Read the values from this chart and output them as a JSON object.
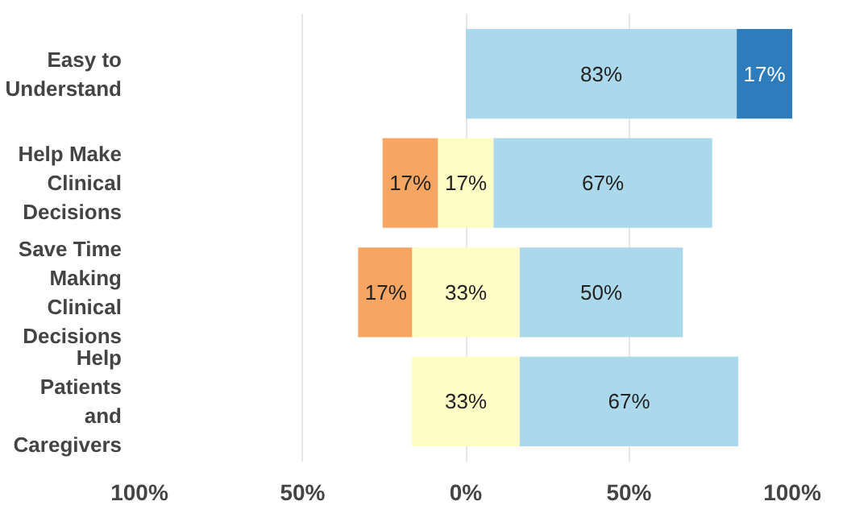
{
  "chart_data": {
    "type": "bar",
    "orientation": "horizontal",
    "categories": [
      "Easy to\nUnderstand",
      "Help Make\nClinical\nDecisions",
      "Save Time\nMaking\nClinical\nDecisions",
      "Help\nPatients\nand\nCaregivers"
    ],
    "series": [
      {
        "color": "#f7a562",
        "base": [
          null,
          -25.5,
          -33,
          null
        ],
        "values": [
          null,
          17,
          17,
          null
        ],
        "value_labels": [
          null,
          "17%",
          "17%",
          null
        ]
      },
      {
        "color": "#fffcc6",
        "base": [
          null,
          -8.5,
          -16.5,
          -16.5
        ],
        "values": [
          null,
          17,
          33,
          33
        ],
        "value_labels": [
          null,
          "17%",
          "33%",
          "33%"
        ]
      },
      {
        "color": "#abd8ea",
        "base": [
          0,
          8.5,
          16.5,
          16.5
        ],
        "values": [
          83,
          67,
          50,
          67
        ],
        "value_labels": [
          "83%",
          "67%",
          "50%",
          "67%"
        ]
      },
      {
        "color": "#2f7cbd",
        "base": [
          83,
          null,
          null,
          null
        ],
        "values": [
          17,
          null,
          null,
          null
        ],
        "value_labels": [
          "17%",
          null,
          null,
          null
        ]
      }
    ],
    "xlim": [
      -100,
      100
    ],
    "xticks": [
      {
        "value": -100,
        "label": "100%"
      },
      {
        "value": -50,
        "label": "50%"
      },
      {
        "value": 0,
        "label": "0%"
      },
      {
        "value": 50,
        "label": "50%"
      },
      {
        "value": 100,
        "label": "100%"
      }
    ],
    "grid": "x"
  }
}
